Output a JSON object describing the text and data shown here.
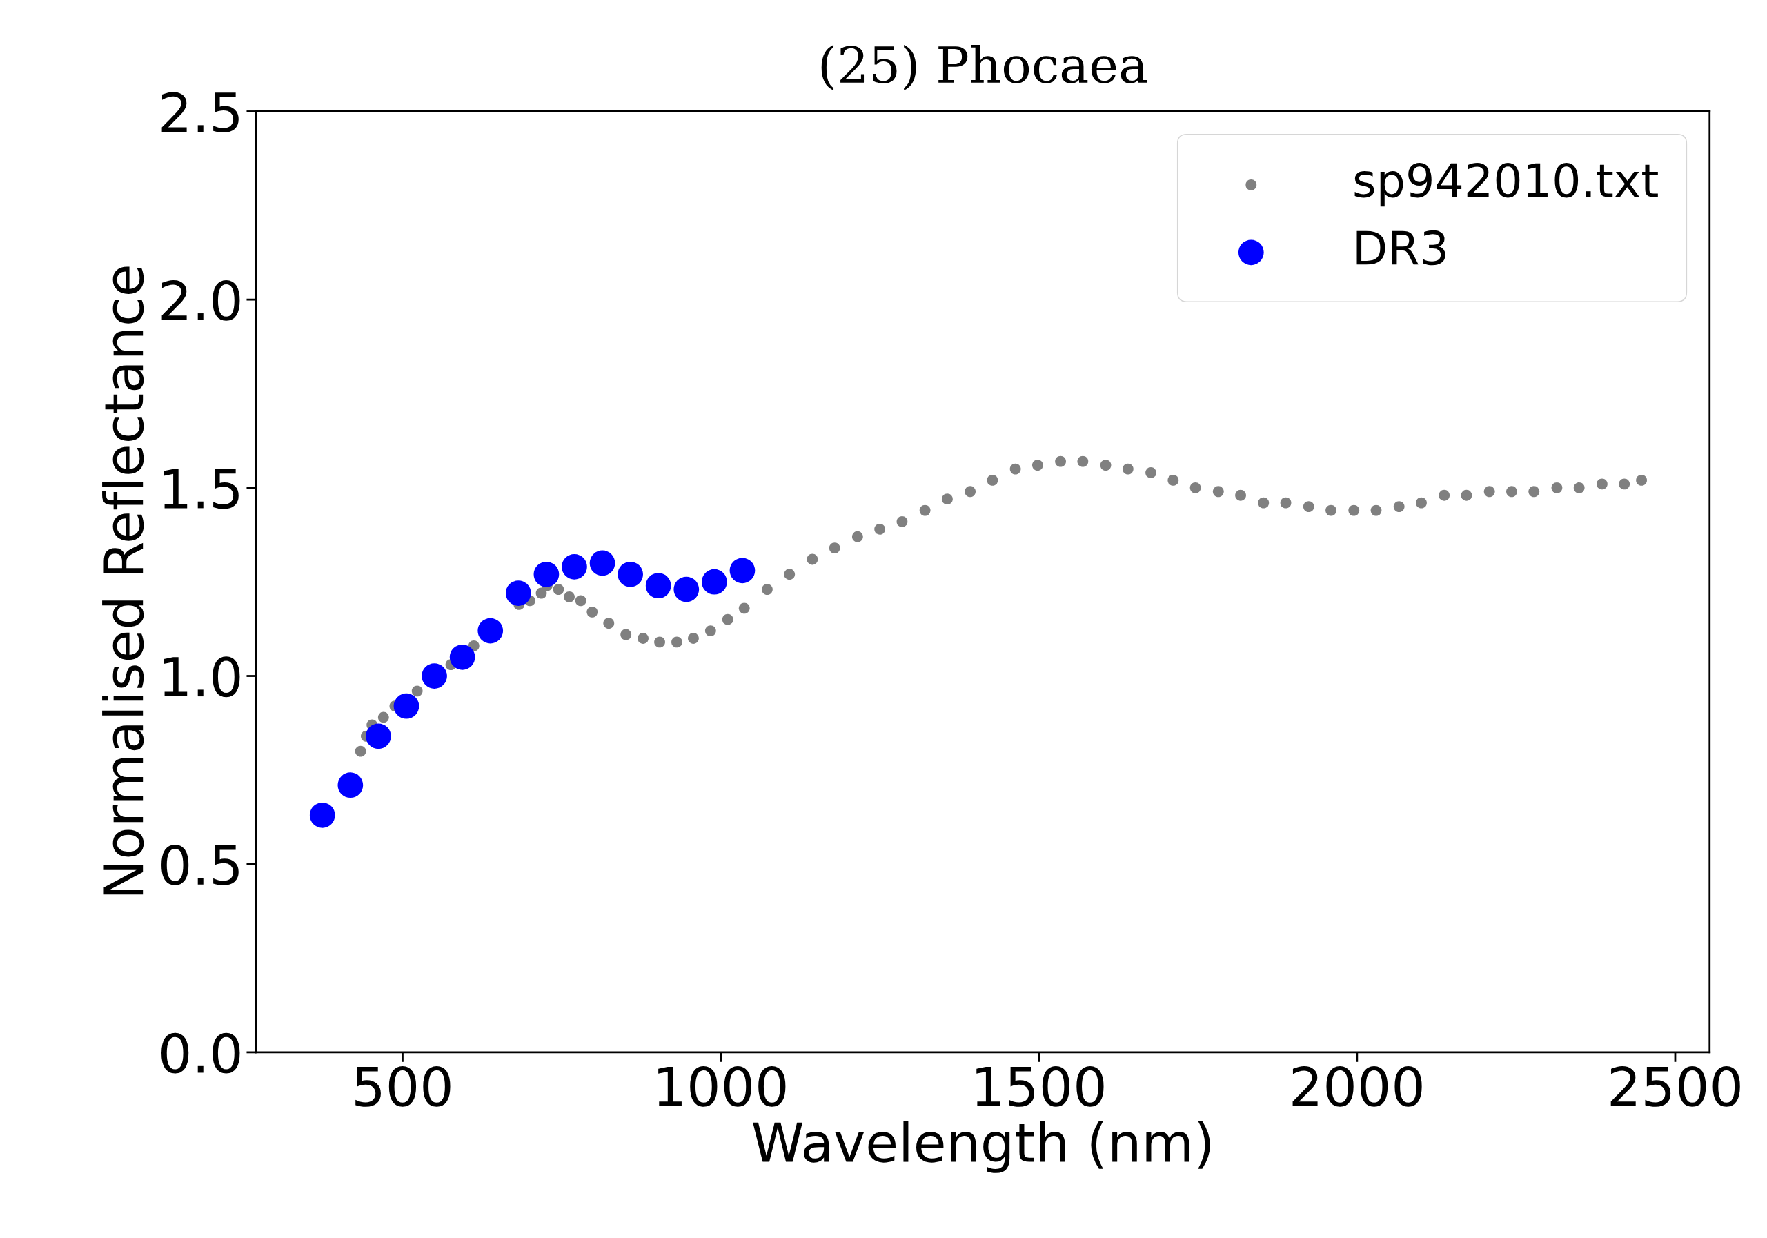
{
  "chart_data": {
    "type": "scatter",
    "title": "(25) Phocaea",
    "xlabel": "Wavelength (nm)",
    "ylabel": "Normalised Reflectance",
    "xlim": [
      270,
      2554
    ],
    "xticks": [
      500,
      1000,
      1500,
      2000,
      2500
    ],
    "ylim": [
      0.0,
      2.5
    ],
    "yticks": [
      {
        "value": 0.0,
        "label": "0.0"
      },
      {
        "value": 0.5,
        "label": "0.5"
      },
      {
        "value": 1.0,
        "label": "1.0"
      },
      {
        "value": 1.5,
        "label": "1.5"
      },
      {
        "value": 2.0,
        "label": "2.0"
      },
      {
        "value": 2.5,
        "label": "2.5"
      }
    ],
    "grid": false,
    "legend": "top right",
    "marker": "circle",
    "series": [
      {
        "name": "sp942010.txt",
        "color": "#808080",
        "x": [
          434,
          443,
          452,
          470,
          488,
          523,
          576,
          612,
          683,
          700,
          718,
          727,
          745,
          762,
          780,
          798,
          824,
          851,
          878,
          904,
          931,
          957,
          984,
          1011,
          1037,
          1073,
          1108,
          1144,
          1179,
          1215,
          1250,
          1285,
          1321,
          1356,
          1392,
          1427,
          1463,
          1498,
          1534,
          1569,
          1605,
          1640,
          1676,
          1711,
          1746,
          1782,
          1817,
          1853,
          1888,
          1924,
          1959,
          1995,
          2030,
          2066,
          2101,
          2137,
          2172,
          2208,
          2243,
          2278,
          2314,
          2349,
          2385,
          2420,
          2447
        ],
        "values": [
          0.8,
          0.84,
          0.87,
          0.89,
          0.92,
          0.96,
          1.03,
          1.08,
          1.19,
          1.2,
          1.22,
          1.24,
          1.23,
          1.21,
          1.2,
          1.17,
          1.14,
          1.11,
          1.1,
          1.09,
          1.09,
          1.1,
          1.12,
          1.15,
          1.18,
          1.23,
          1.27,
          1.31,
          1.34,
          1.37,
          1.39,
          1.41,
          1.44,
          1.47,
          1.49,
          1.52,
          1.55,
          1.56,
          1.57,
          1.57,
          1.56,
          1.55,
          1.54,
          1.52,
          1.5,
          1.49,
          1.48,
          1.46,
          1.46,
          1.45,
          1.44,
          1.44,
          1.44,
          1.45,
          1.46,
          1.48,
          1.48,
          1.49,
          1.49,
          1.49,
          1.5,
          1.5,
          1.51,
          1.51,
          1.52
        ]
      },
      {
        "name": "DR3",
        "color": "#0000ff",
        "x": [
          374,
          418,
          462,
          506,
          550,
          594,
          638,
          682,
          726,
          770,
          814,
          858,
          902,
          946,
          990,
          1034
        ],
        "values": [
          0.63,
          0.71,
          0.84,
          0.92,
          1.0,
          1.05,
          1.12,
          1.22,
          1.27,
          1.29,
          1.3,
          1.27,
          1.24,
          1.23,
          1.25,
          1.28
        ]
      }
    ]
  }
}
